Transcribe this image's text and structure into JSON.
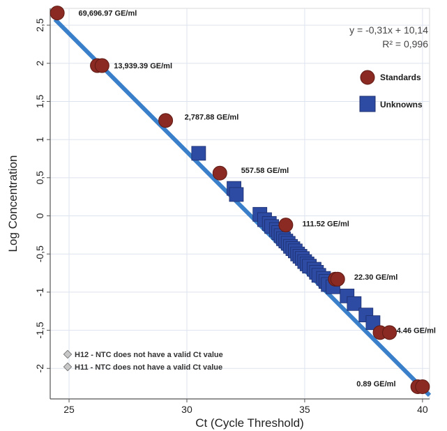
{
  "chart_data": {
    "type": "scatter",
    "xlabel": "Ct (Cycle Threshold)",
    "ylabel": "Log Concentration",
    "xlim": [
      24.2,
      40.3
    ],
    "ylim": [
      -2.4,
      2.72
    ],
    "x_ticks": [
      "25",
      "30",
      "35",
      "40"
    ],
    "y_ticks": [
      "2,5",
      "2",
      "1,5",
      "1",
      "0,5",
      "0",
      "-0,5",
      "-1",
      "-1,5",
      "-2"
    ],
    "grid": true,
    "fit": {
      "equation": "y = -0,31x + 10,14",
      "r2": "R² = 0,996",
      "slope": -0.31,
      "intercept": 10.14,
      "x_range": [
        24.4,
        40.3
      ]
    },
    "legend": {
      "position": "right",
      "items": [
        {
          "name": "Standards",
          "color": "#8B2A22",
          "shape": "circle"
        },
        {
          "name": "Unknowns",
          "color": "#2E4BA3",
          "shape": "square"
        }
      ]
    },
    "standards": {
      "color": "#8B2A22",
      "points": [
        {
          "x": 24.5,
          "y": 2.66
        },
        {
          "x": 26.2,
          "y": 1.97
        },
        {
          "x": 26.4,
          "y": 1.97
        },
        {
          "x": 29.1,
          "y": 1.25
        },
        {
          "x": 31.4,
          "y": 0.56
        },
        {
          "x": 34.2,
          "y": -0.12
        },
        {
          "x": 36.3,
          "y": -0.83
        },
        {
          "x": 36.4,
          "y": -0.83
        },
        {
          "x": 38.2,
          "y": -1.53
        },
        {
          "x": 38.6,
          "y": -1.53
        },
        {
          "x": 39.8,
          "y": -2.24
        },
        {
          "x": 40.0,
          "y": -2.24
        }
      ],
      "labels": [
        {
          "text": "69,696.97 GE/ml",
          "x": 25.4,
          "y": 2.66
        },
        {
          "text": "13,939.39 GE/ml",
          "x": 26.9,
          "y": 1.97
        },
        {
          "text": "2,787.88 GE/ml",
          "x": 29.9,
          "y": 1.3
        },
        {
          "text": "557.58 GE/ml",
          "x": 32.3,
          "y": 0.6
        },
        {
          "text": "111.52 GE/ml",
          "x": 34.9,
          "y": -0.1
        },
        {
          "text": "22.30 GE/ml",
          "x": 37.1,
          "y": -0.8
        },
        {
          "text": "4.46 GE/ml",
          "x": 38.9,
          "y": -1.5
        },
        {
          "text": "0.89 GE/ml",
          "x": 37.2,
          "y": -2.2
        }
      ]
    },
    "unknowns": {
      "color": "#2E4BA3",
      "points": [
        {
          "x": 30.5,
          "y": 0.82
        },
        {
          "x": 32.0,
          "y": 0.36
        },
        {
          "x": 32.1,
          "y": 0.28
        },
        {
          "x": 33.1,
          "y": 0.02
        },
        {
          "x": 33.3,
          "y": -0.05
        },
        {
          "x": 33.5,
          "y": -0.1
        },
        {
          "x": 33.6,
          "y": -0.14
        },
        {
          "x": 33.8,
          "y": -0.18
        },
        {
          "x": 33.9,
          "y": -0.22
        },
        {
          "x": 34.0,
          "y": -0.26
        },
        {
          "x": 34.1,
          "y": -0.3
        },
        {
          "x": 34.2,
          "y": -0.33
        },
        {
          "x": 34.3,
          "y": -0.36
        },
        {
          "x": 34.4,
          "y": -0.4
        },
        {
          "x": 34.5,
          "y": -0.43
        },
        {
          "x": 34.6,
          "y": -0.46
        },
        {
          "x": 34.7,
          "y": -0.5
        },
        {
          "x": 34.8,
          "y": -0.53
        },
        {
          "x": 34.9,
          "y": -0.56
        },
        {
          "x": 35.0,
          "y": -0.6
        },
        {
          "x": 35.1,
          "y": -0.63
        },
        {
          "x": 35.2,
          "y": -0.66
        },
        {
          "x": 35.4,
          "y": -0.7
        },
        {
          "x": 35.5,
          "y": -0.74
        },
        {
          "x": 35.6,
          "y": -0.78
        },
        {
          "x": 35.8,
          "y": -0.82
        },
        {
          "x": 35.9,
          "y": -0.86
        },
        {
          "x": 36.0,
          "y": -0.9
        },
        {
          "x": 36.2,
          "y": -0.93
        },
        {
          "x": 36.8,
          "y": -1.05
        },
        {
          "x": 37.1,
          "y": -1.15
        },
        {
          "x": 37.6,
          "y": -1.3
        },
        {
          "x": 37.9,
          "y": -1.4
        }
      ]
    },
    "notes": [
      "H12 - NTC  does not have a valid Ct value",
      "H11 - NTC  does not have a valid Ct value"
    ]
  }
}
